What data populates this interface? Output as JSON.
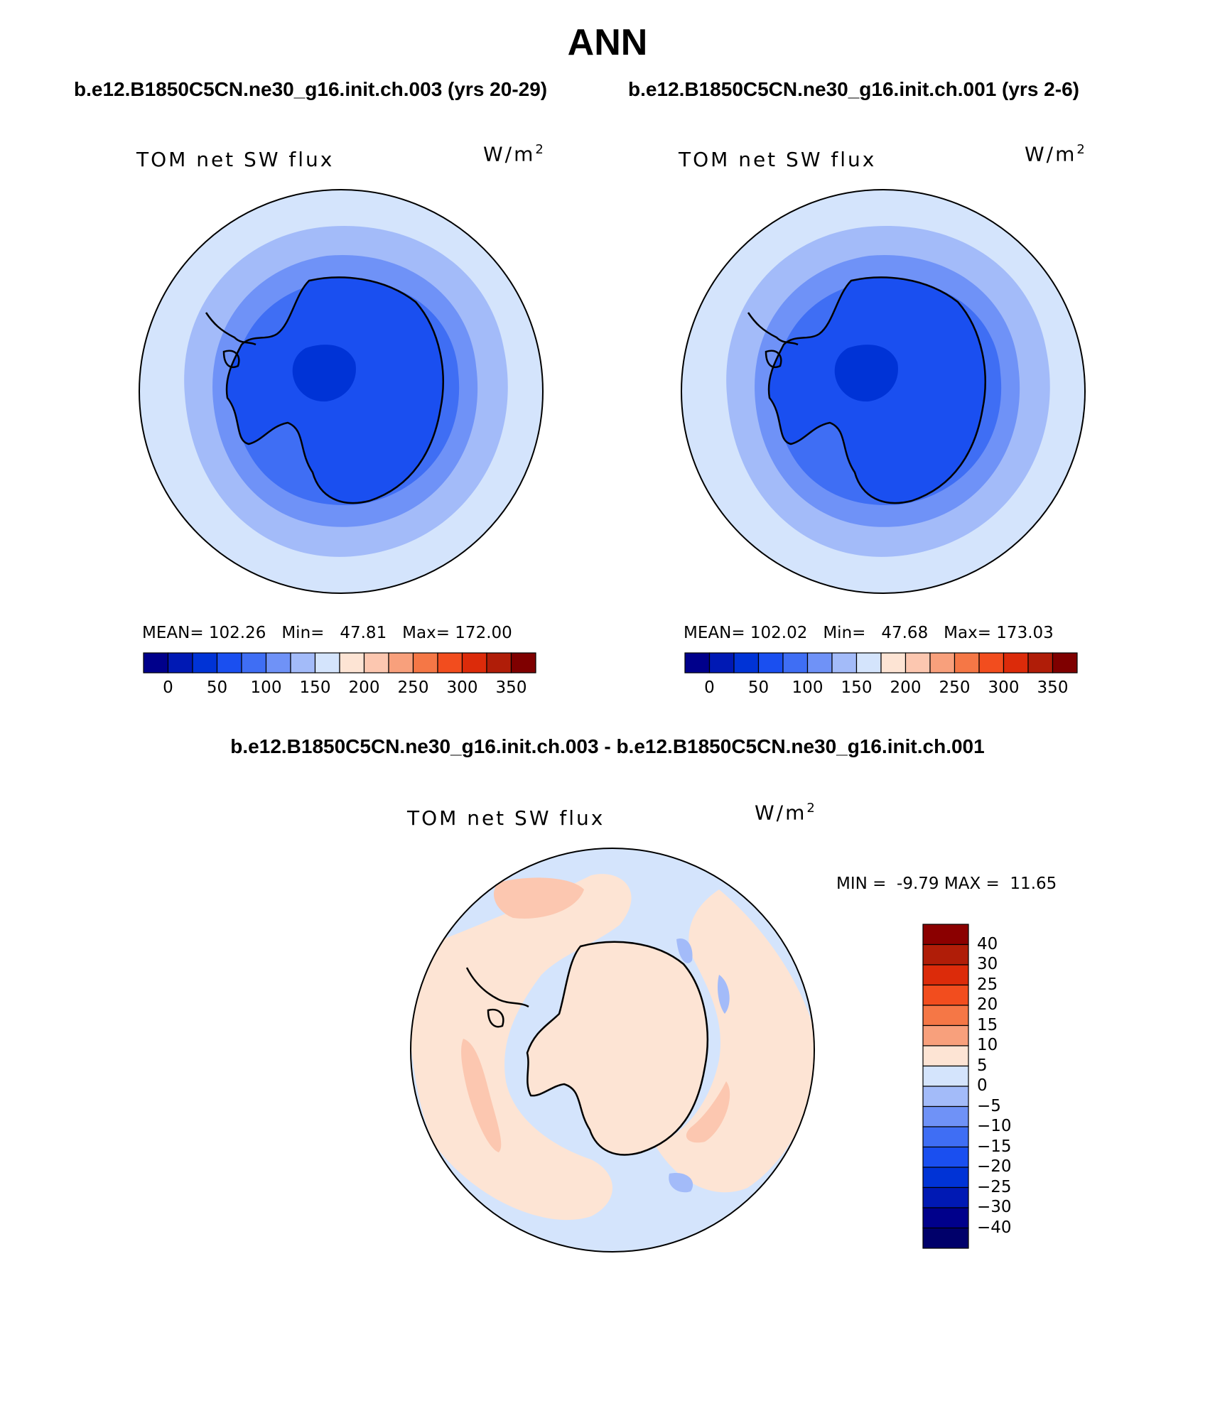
{
  "title": "ANN",
  "panels": {
    "left": {
      "case_title": "b.e12.B1850C5CN.ne30_g16.init.ch.003 (yrs 20-29)",
      "variable": "TOM net SW flux",
      "units": "W/m",
      "units_exp": "2",
      "stats": {
        "mean_label": "MEAN=",
        "mean": "102.26",
        "min_label": "Min=",
        "min": "47.81",
        "max_label": "Max=",
        "max": "172.00"
      }
    },
    "right": {
      "case_title": "b.e12.B1850C5CN.ne30_g16.init.ch.001 (yrs 2-6)",
      "variable": "TOM net SW flux",
      "units": "W/m",
      "units_exp": "2",
      "stats": {
        "mean_label": "MEAN=",
        "mean": "102.02",
        "min_label": "Min=",
        "min": "47.68",
        "max_label": "Max=",
        "max": "173.03"
      }
    },
    "diff": {
      "case_title": "b.e12.B1850C5CN.ne30_g16.init.ch.003 - b.e12.B1850C5CN.ne30_g16.init.ch.001",
      "variable": "TOM net SW flux",
      "units": "W/m",
      "units_exp": "2",
      "stats": {
        "min_label": "MIN =",
        "min": "-9.79",
        "max_label": "MAX =",
        "max": "11.65"
      }
    }
  },
  "colorbar_horizontal": {
    "colors": [
      "#00008b",
      "#0019b4",
      "#0033d6",
      "#1a4ff0",
      "#3f6ef4",
      "#6f92f7",
      "#a3bbf9",
      "#d4e4fc",
      "#fde4d4",
      "#fcc7b0",
      "#f8a07c",
      "#f57746",
      "#f24d1e",
      "#dc2b0a",
      "#b01d08",
      "#7f0000"
    ],
    "ticks": [
      "0",
      "50",
      "100",
      "150",
      "200",
      "250",
      "300",
      "350"
    ]
  },
  "colorbar_vertical": {
    "colors_top_to_bottom": [
      "#8b0000",
      "#b01d08",
      "#dc2b0a",
      "#f24d1e",
      "#f57746",
      "#f8a07c",
      "#fde4d4",
      "#d4e4fc",
      "#a3bbf9",
      "#6f92f7",
      "#3f6ef4",
      "#1a4ff0",
      "#0033d6",
      "#0019b4",
      "#00008b",
      "#00006a"
    ],
    "ticks_top_to_bottom": [
      "40",
      "30",
      "25",
      "20",
      "15",
      "10",
      "5",
      "0",
      "−5",
      "−10",
      "−15",
      "−20",
      "−25",
      "−30",
      "−40"
    ]
  },
  "map_colors": {
    "ring_outer": "#d4e4fc",
    "ring_2": "#a3bbf9",
    "ring_3": "#6f92f7",
    "ring_4": "#3f6ef4",
    "continent": "#1a4ff0",
    "interior": "#0033d6",
    "diff_neg": "#d4e4fc",
    "diff_pos": "#fde4d4",
    "diff_pos_strong": "#fcc7b0",
    "diff_neg_strong": "#a3bbf9"
  }
}
